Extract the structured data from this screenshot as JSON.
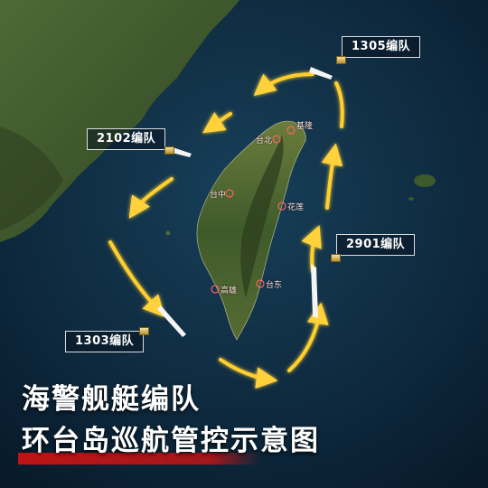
{
  "map": {
    "title_line1": "海警舰艇编队",
    "title_line2": "环台岛巡航管控示意图",
    "fleets": [
      {
        "id": "1305",
        "label": "1305编队"
      },
      {
        "id": "2102",
        "label": "2102编队"
      },
      {
        "id": "2901",
        "label": "2901编队"
      },
      {
        "id": "1303",
        "label": "1303编队"
      }
    ],
    "cities": [
      {
        "name": "基隆"
      },
      {
        "name": "台北"
      },
      {
        "name": "台中"
      },
      {
        "name": "花莲"
      },
      {
        "name": "台东"
      },
      {
        "name": "高雄"
      }
    ],
    "colors": {
      "sea": "#13324a",
      "land": "#3f5a2f",
      "route": "#f5c233",
      "highlight": "#c81414"
    }
  }
}
